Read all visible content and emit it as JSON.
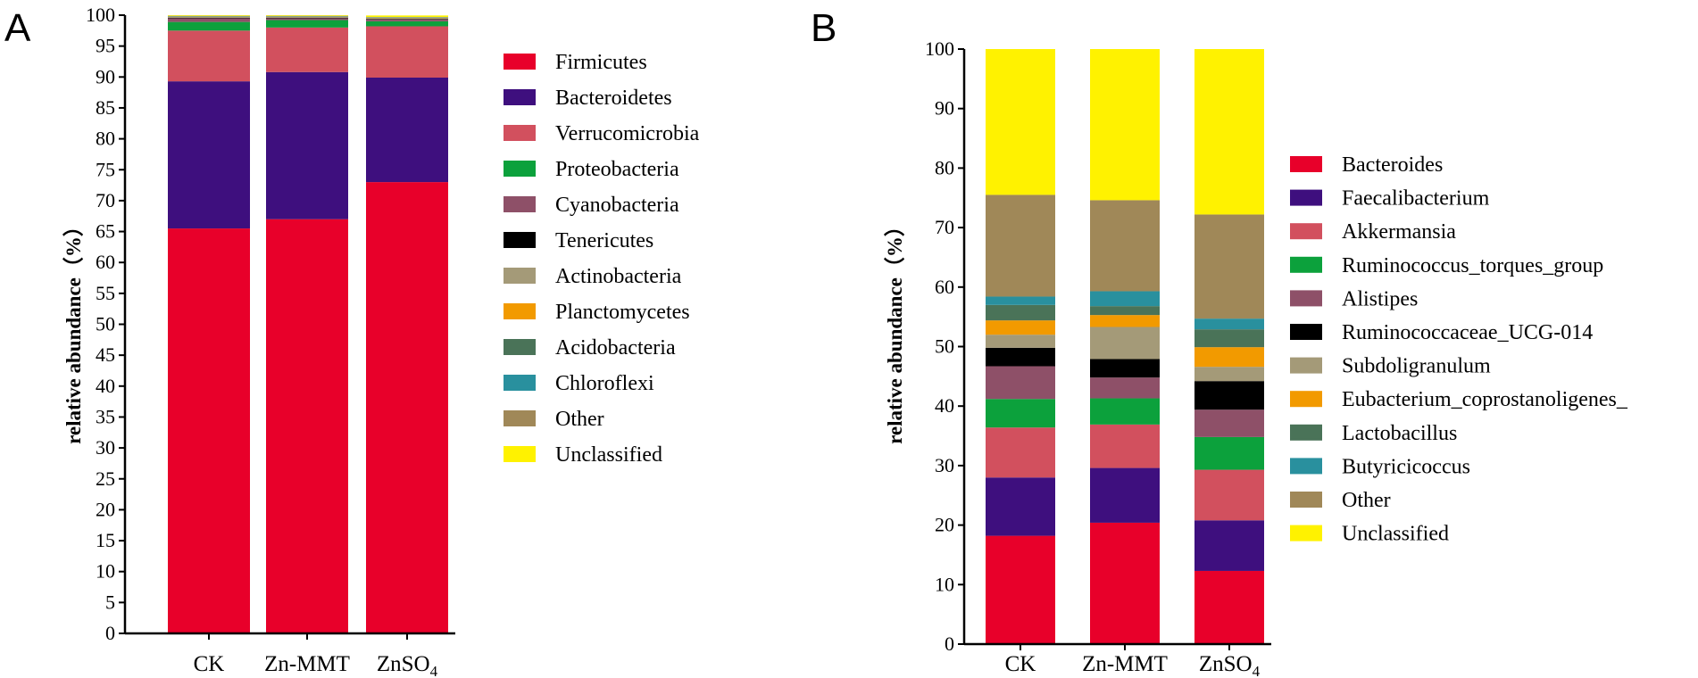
{
  "chart_data": [
    {
      "type": "bar",
      "stacked": true,
      "panel": "A",
      "title": "",
      "xlabel": "",
      "ylabel": "relative abundance（%）",
      "ylim": [
        0,
        100
      ],
      "yticks": [
        0,
        5,
        10,
        15,
        20,
        25,
        30,
        35,
        40,
        45,
        50,
        55,
        60,
        65,
        70,
        75,
        80,
        85,
        90,
        95,
        100
      ],
      "categories": [
        {
          "text": "CK",
          "sub": ""
        },
        {
          "text": "Zn-MMT",
          "sub": ""
        },
        {
          "text": "ZnSO",
          "sub": "4"
        }
      ],
      "legend_position": "right",
      "series": [
        {
          "name": "Firmicutes",
          "color": "#e8002a",
          "values": [
            65.5,
            67.0,
            73.0
          ]
        },
        {
          "name": "Bacteroidetes",
          "color": "#3e0f7e",
          "values": [
            23.8,
            23.8,
            16.9
          ]
        },
        {
          "name": "Verrucomicrobia",
          "color": "#d2505e",
          "values": [
            8.2,
            7.2,
            8.3
          ]
        },
        {
          "name": "Proteobacteria",
          "color": "#0ca13c",
          "values": [
            1.4,
            1.2,
            0.8
          ]
        },
        {
          "name": "Cyanobacteria",
          "color": "#8e5068",
          "values": [
            0.6,
            0.3,
            0.3
          ]
        },
        {
          "name": "Tenericutes",
          "color": "#000000",
          "values": [
            0.1,
            0.1,
            0.1
          ]
        },
        {
          "name": "Actinobacteria",
          "color": "#a49a78",
          "values": [
            0.1,
            0.1,
            0.1
          ]
        },
        {
          "name": "Planctomycetes",
          "color": "#f29a00",
          "values": [
            0.05,
            0.05,
            0.05
          ]
        },
        {
          "name": "Acidobacteria",
          "color": "#4a7358",
          "values": [
            0.05,
            0.05,
            0.05
          ]
        },
        {
          "name": "Chloroflexi",
          "color": "#29909e",
          "values": [
            0.05,
            0.05,
            0.05
          ]
        },
        {
          "name": "Other",
          "color": "#a08858",
          "values": [
            0.05,
            0.05,
            0.05
          ]
        },
        {
          "name": "Unclassified",
          "color": "#fff200",
          "values": [
            0.1,
            0.1,
            0.25
          ]
        }
      ]
    },
    {
      "type": "bar",
      "stacked": true,
      "panel": "B",
      "title": "",
      "xlabel": "",
      "ylabel": "relative abundance（%）",
      "ylim": [
        0,
        100
      ],
      "yticks": [
        0,
        10,
        20,
        30,
        40,
        50,
        60,
        70,
        80,
        90,
        100
      ],
      "categories": [
        {
          "text": "CK",
          "sub": ""
        },
        {
          "text": "Zn-MMT",
          "sub": ""
        },
        {
          "text": "ZnSO",
          "sub": "4"
        }
      ],
      "legend_position": "right",
      "series": [
        {
          "name": "Bacteroides",
          "color": "#e8002a",
          "values": [
            18.2,
            20.4,
            12.3
          ]
        },
        {
          "name": "Faecalibacterium",
          "color": "#3e0f7e",
          "values": [
            9.8,
            9.2,
            8.5
          ]
        },
        {
          "name": "Akkermansia",
          "color": "#d2505e",
          "values": [
            8.4,
            7.3,
            8.5
          ]
        },
        {
          "name": "Ruminococcus_torques_group",
          "color": "#0ca13c",
          "values": [
            4.8,
            4.4,
            5.5
          ]
        },
        {
          "name": "Alistipes",
          "color": "#8e5068",
          "values": [
            5.5,
            3.5,
            4.6
          ]
        },
        {
          "name": "Ruminococcaceae_UCG-014",
          "color": "#000000",
          "values": [
            3.1,
            3.1,
            4.8
          ]
        },
        {
          "name": "Subdoligranulum",
          "color": "#a49a78",
          "values": [
            2.2,
            5.4,
            2.4
          ]
        },
        {
          "name": "Eubacterium_coprostanoligenes_",
          "color": "#f29a00",
          "values": [
            2.4,
            2.0,
            3.3
          ]
        },
        {
          "name": "Lactobacillus",
          "color": "#4a7358",
          "values": [
            2.6,
            1.5,
            3.0
          ]
        },
        {
          "name": "Butyricicoccus",
          "color": "#29909e",
          "values": [
            1.4,
            2.5,
            1.8
          ]
        },
        {
          "name": "Other",
          "color": "#a08858",
          "values": [
            17.1,
            15.3,
            17.5
          ]
        },
        {
          "name": "Unclassified",
          "color": "#fff200",
          "values": [
            24.5,
            25.4,
            27.8
          ]
        }
      ]
    }
  ]
}
